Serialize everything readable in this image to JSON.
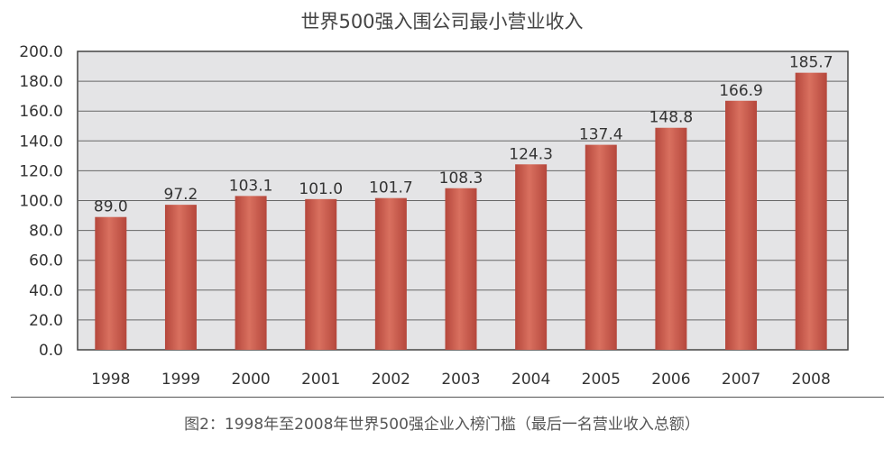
{
  "chart_data": {
    "type": "bar",
    "title": "世界500强入围公司最小营业收入",
    "caption": "图2：1998年至2008年世界500强企业入榜门槛（最后一名营业收入总额）",
    "categories": [
      "1998",
      "1999",
      "2000",
      "2001",
      "2002",
      "2003",
      "2004",
      "2005",
      "2006",
      "2007",
      "2008"
    ],
    "values": [
      89.0,
      97.2,
      103.1,
      101.0,
      101.7,
      108.3,
      124.3,
      137.4,
      148.8,
      166.9,
      185.7
    ],
    "value_labels": [
      "89.0",
      "97.2",
      "103.1",
      "101.0",
      "101.7",
      "108.3",
      "124.3",
      "137.4",
      "148.8",
      "166.9",
      "185.7"
    ],
    "yticks": [
      "0.0",
      "20.0",
      "40.0",
      "60.0",
      "80.0",
      "100.0",
      "120.0",
      "140.0",
      "160.0",
      "180.0",
      "200.0"
    ],
    "ylim": [
      0,
      200
    ],
    "xlabel": "",
    "ylabel": "",
    "grid": true,
    "colors": {
      "bar": "#b5473c",
      "bar_light": "#d9705f",
      "plot_bg": "#e4e4e6"
    }
  }
}
